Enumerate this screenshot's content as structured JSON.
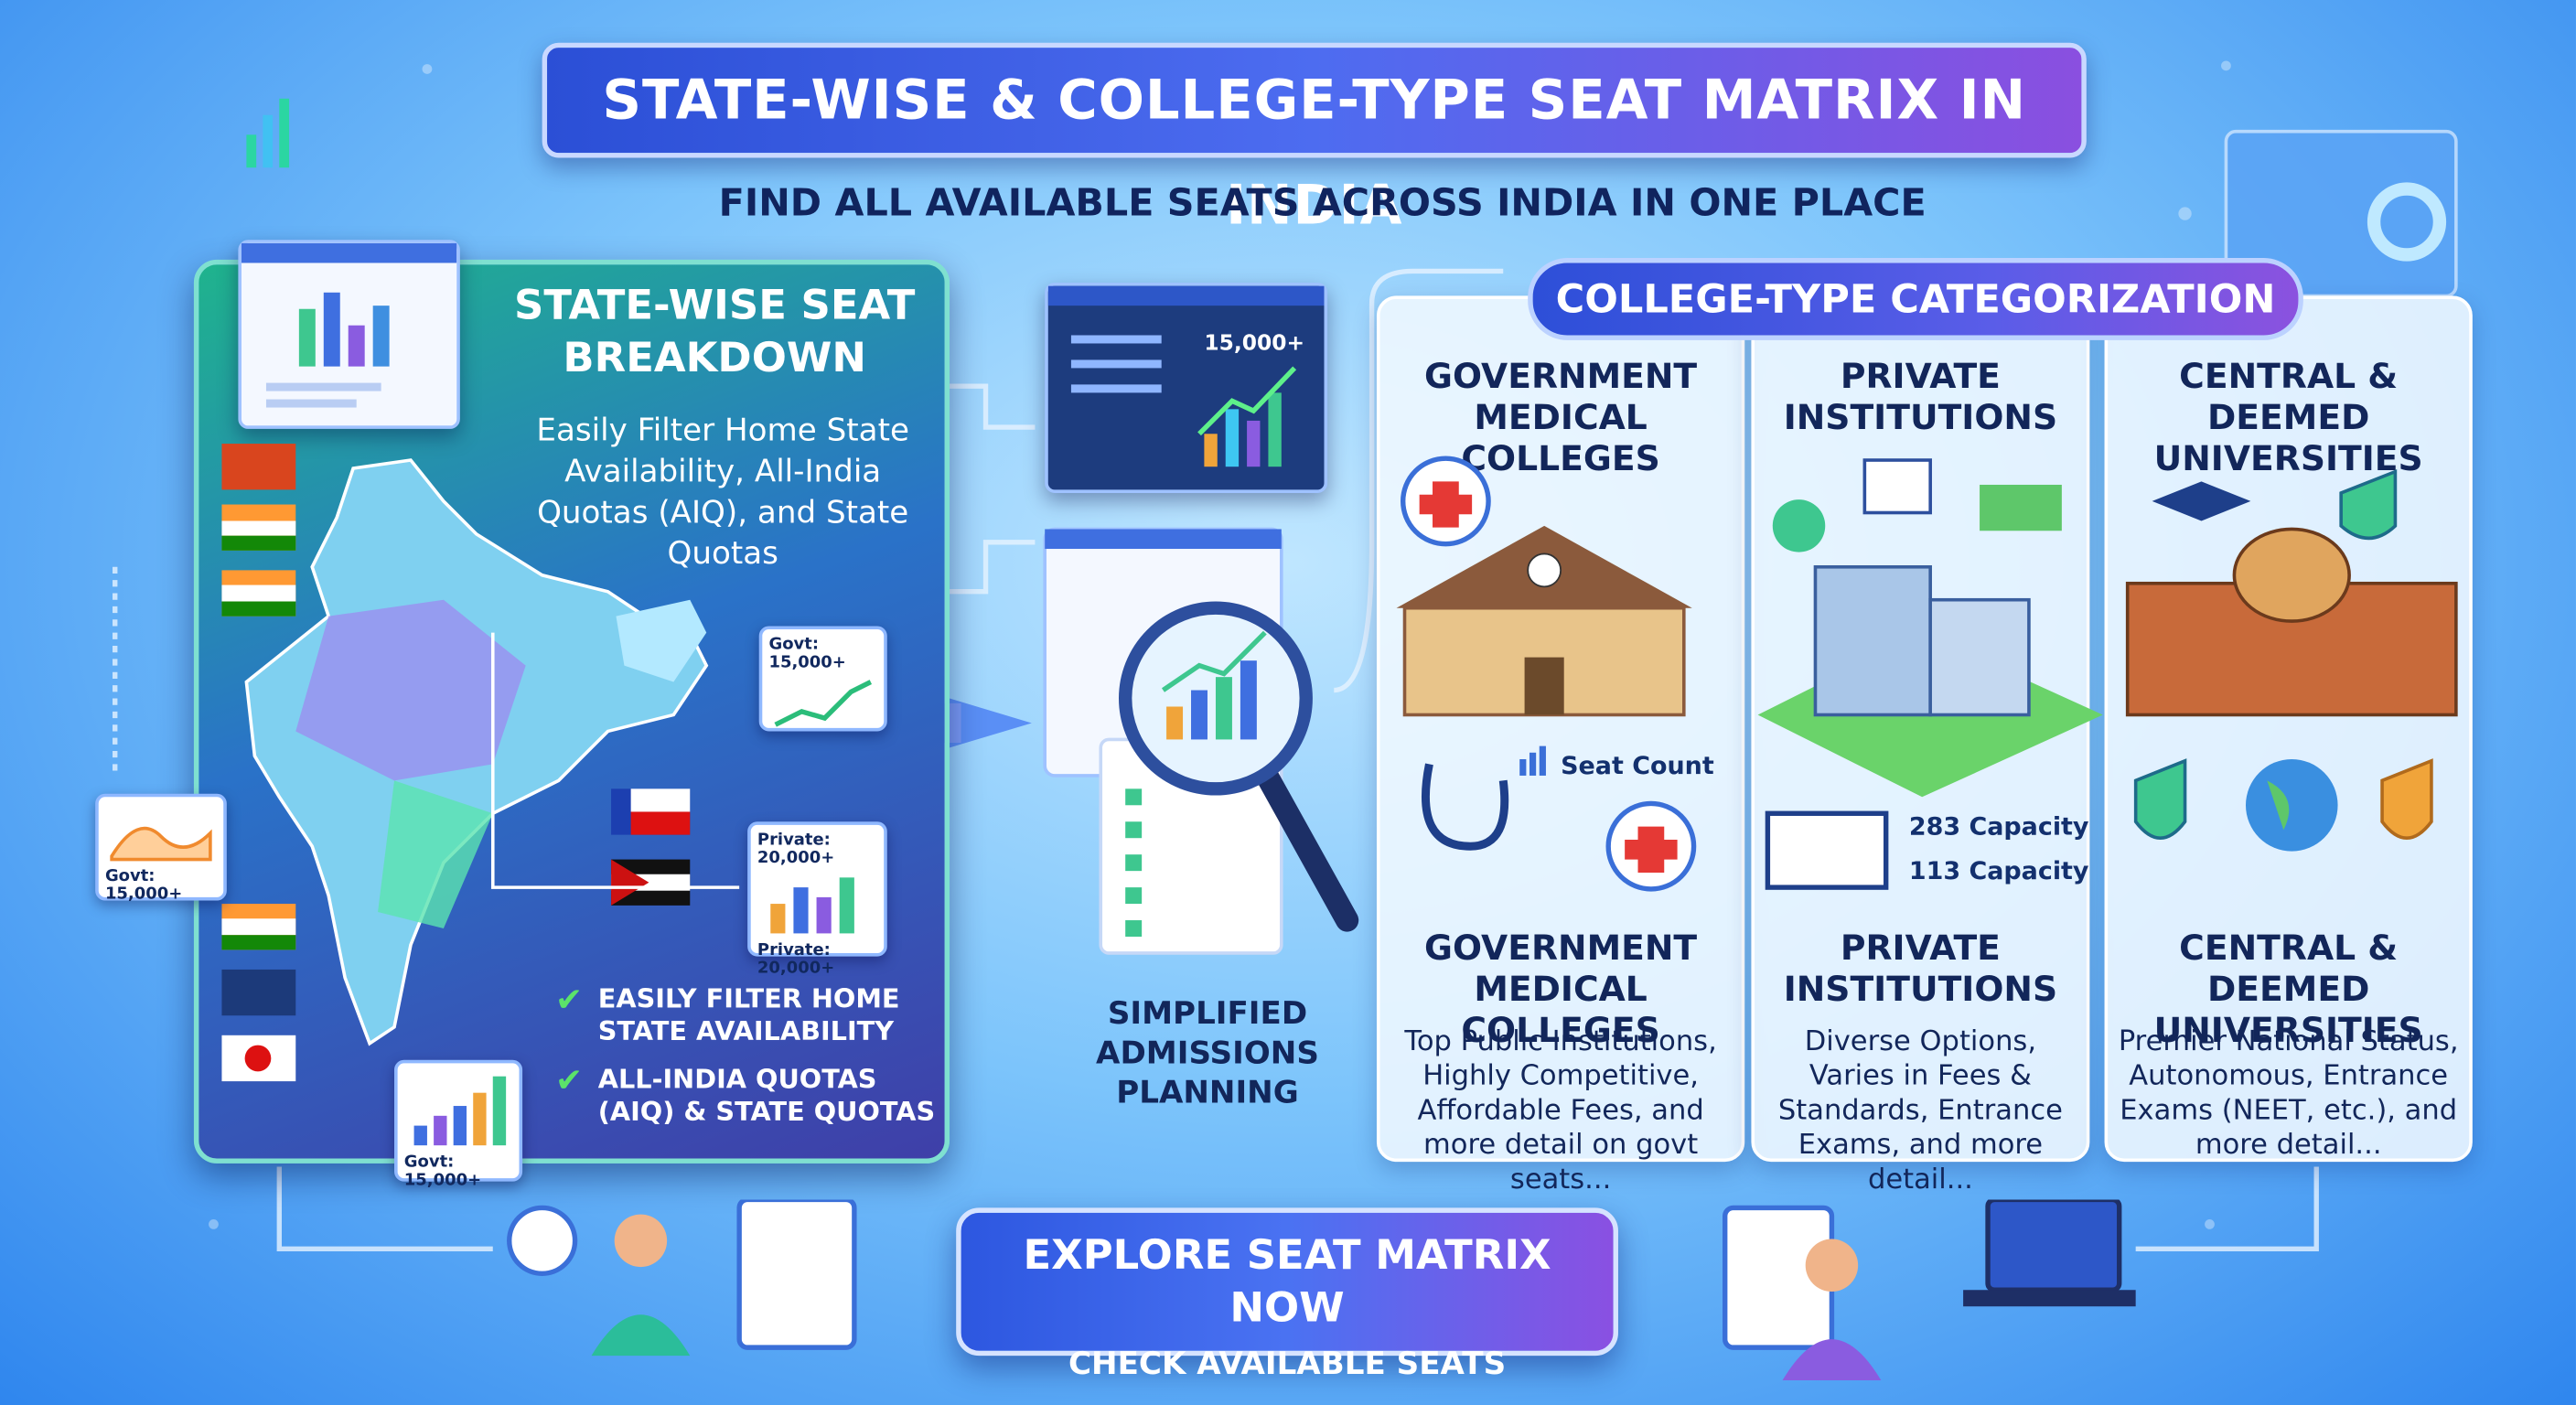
{
  "header": {
    "title": "STATE-WISE & COLLEGE-TYPE SEAT MATRIX IN INDIA",
    "subtitle": "FIND ALL AVAILABLE SEATS ACROSS INDIA IN ONE PLACE"
  },
  "state_panel": {
    "heading": "STATE-WISE SEAT BREAKDOWN",
    "description": "Easily Filter Home State Availability, All-India Quotas (AIQ), and State Quotas",
    "callouts": [
      "Govt: 15,000+",
      "Govt: 15,000+",
      "Private: 20,000+",
      "Private: 20,000+",
      "Govt: 15,000+"
    ],
    "checklist": [
      "EASILY FILTER HOME STATE AVAILABILITY",
      "ALL-INDIA QUOTAS (AIQ) & STATE QUOTAS"
    ]
  },
  "planning": {
    "dashboard_stat": "15,000+",
    "label": "SIMPLIFIED ADMISSIONS PLANNING"
  },
  "categorization": {
    "heading": "COLLEGE-TYPE CATEGORIZATION",
    "columns": [
      {
        "top_title": "GOVERNMENT MEDICAL COLLEGES",
        "badges": [
          "Seat Count"
        ],
        "title": "GOVERNMENT MEDICAL COLLEGES",
        "description": "Top Public Institutions, Highly Competitive, Affordable Fees, and more detail on govt seats..."
      },
      {
        "top_title": "PRIVATE INSTITUTIONS",
        "badges": [
          "283 Capacity",
          "113 Capacity"
        ],
        "title": "PRIVATE INSTITUTIONS",
        "description": "Diverse Options, Varies in Fees & Standards, Entrance Exams, and more detail..."
      },
      {
        "top_title": "CENTRAL & DEEMED UNIVERSITIES",
        "badges": [],
        "title": "CENTRAL & DEEMED UNIVERSITIES",
        "description": "Premier National Status, Autonomous, Entrance Exams (NEET, etc.), and more detail..."
      }
    ]
  },
  "cta": {
    "button": "EXPLORE SEAT MATRIX NOW",
    "sub": "CHECK AVAILABLE SEATS"
  }
}
